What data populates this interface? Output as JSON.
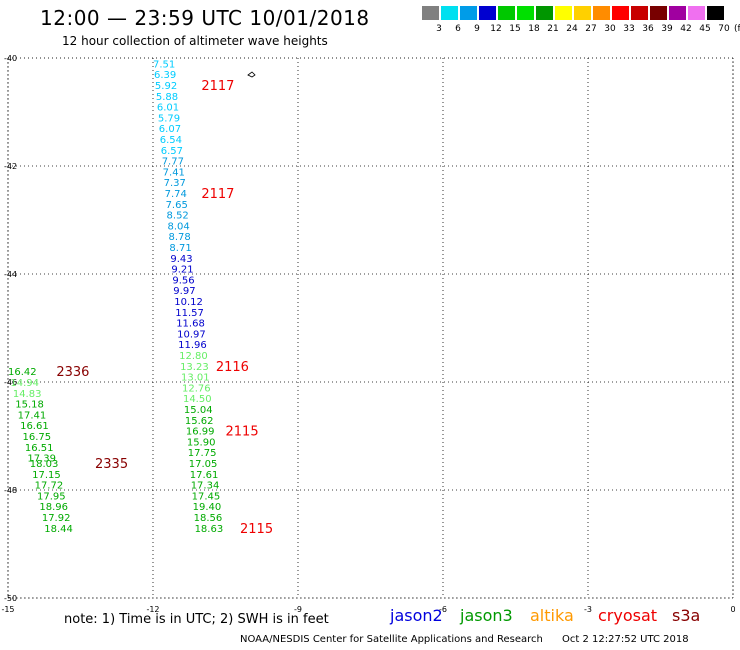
{
  "header": {
    "title": "12:00 — 23:59 UTC 10/01/2018",
    "subtitle": "12 hour collection of altimeter wave heights"
  },
  "scale": {
    "unit": "(ft)",
    "entries": [
      {
        "color": "#808080",
        "label": "3"
      },
      {
        "color": "#00e0f0",
        "label": "6"
      },
      {
        "color": "#009ce8",
        "label": "9"
      },
      {
        "color": "#0000d0",
        "label": "12"
      },
      {
        "color": "#00c800",
        "label": "15"
      },
      {
        "color": "#00e000",
        "label": "18"
      },
      {
        "color": "#009600",
        "label": "21"
      },
      {
        "color": "#ffff00",
        "label": "24"
      },
      {
        "color": "#ffd000",
        "label": "27"
      },
      {
        "color": "#ff8c00",
        "label": "30"
      },
      {
        "color": "#ff0000",
        "label": "33"
      },
      {
        "color": "#c80000",
        "label": "36"
      },
      {
        "color": "#780000",
        "label": "39"
      },
      {
        "color": "#a000a0",
        "label": "42"
      },
      {
        "color": "#f070f0",
        "label": "45"
      },
      {
        "color": "#000000",
        "label": "70"
      }
    ]
  },
  "axes": {
    "x_ticks": [
      "-15",
      "-12",
      "-9",
      "-6",
      "-3",
      "0"
    ],
    "y_ticks": [
      "-40",
      "-42",
      "-44",
      "-46",
      "-48",
      "-50"
    ]
  },
  "tracks": [
    {
      "satellite": "jason2",
      "points": [
        {
          "lon": -12.0,
          "lat": -40.1,
          "value": "7.51",
          "color": "#00ccff"
        },
        {
          "lon": -11.98,
          "lat": -40.3,
          "value": "6.39",
          "color": "#00ccff"
        },
        {
          "lon": -11.96,
          "lat": -40.5,
          "value": "5.92",
          "color": "#00ccff"
        },
        {
          "lon": -11.94,
          "lat": -40.7,
          "value": "5.88",
          "color": "#00ccff"
        },
        {
          "lon": -11.92,
          "lat": -40.9,
          "value": "6.01",
          "color": "#00ccff"
        },
        {
          "lon": -11.9,
          "lat": -41.1,
          "value": "5.79",
          "color": "#00ccff"
        },
        {
          "lon": -11.88,
          "lat": -41.3,
          "value": "6.07",
          "color": "#00ccff"
        },
        {
          "lon": -11.86,
          "lat": -41.5,
          "value": "6.54",
          "color": "#00ccff"
        },
        {
          "lon": -11.84,
          "lat": -41.7,
          "value": "6.57",
          "color": "#00ccff"
        },
        {
          "lon": -11.82,
          "lat": -41.9,
          "value": "7.77",
          "color": "#0099dd"
        },
        {
          "lon": -11.8,
          "lat": -42.1,
          "value": "7.41",
          "color": "#0099dd"
        },
        {
          "lon": -11.78,
          "lat": -42.3,
          "value": "7.37",
          "color": "#0099dd"
        },
        {
          "lon": -11.76,
          "lat": -42.5,
          "value": "7.74",
          "color": "#0099dd"
        },
        {
          "lon": -11.74,
          "lat": -42.7,
          "value": "7.65",
          "color": "#0099dd"
        },
        {
          "lon": -11.72,
          "lat": -42.9,
          "value": "8.52",
          "color": "#0099dd"
        },
        {
          "lon": -11.7,
          "lat": -43.1,
          "value": "8.04",
          "color": "#0099dd"
        },
        {
          "lon": -11.68,
          "lat": -43.3,
          "value": "8.78",
          "color": "#0099dd"
        },
        {
          "lon": -11.66,
          "lat": -43.5,
          "value": "8.71",
          "color": "#0099dd"
        },
        {
          "lon": -11.64,
          "lat": -43.7,
          "value": "9.43",
          "color": "#0000cc"
        },
        {
          "lon": -11.62,
          "lat": -43.9,
          "value": "9.21",
          "color": "#0000cc"
        },
        {
          "lon": -11.6,
          "lat": -44.1,
          "value": "9.56",
          "color": "#0000cc"
        },
        {
          "lon": -11.58,
          "lat": -44.3,
          "value": "9.97",
          "color": "#0000cc"
        },
        {
          "lon": -11.56,
          "lat": -44.5,
          "value": "10.12",
          "color": "#0000cc"
        },
        {
          "lon": -11.54,
          "lat": -44.7,
          "value": "11.57",
          "color": "#0000cc"
        },
        {
          "lon": -11.52,
          "lat": -44.9,
          "value": "11.68",
          "color": "#0000cc"
        },
        {
          "lon": -11.5,
          "lat": -45.1,
          "value": "10.97",
          "color": "#0000cc"
        },
        {
          "lon": -11.48,
          "lat": -45.3,
          "value": "11.96",
          "color": "#0000cc"
        },
        {
          "lon": -11.46,
          "lat": -45.5,
          "value": "12.80",
          "color": "#66ee66"
        },
        {
          "lon": -11.44,
          "lat": -45.7,
          "value": "13.23",
          "color": "#66ee66"
        },
        {
          "lon": -11.42,
          "lat": -45.9,
          "value": "13.01",
          "color": "#66ee66"
        },
        {
          "lon": -11.4,
          "lat": -46.1,
          "value": "12.76",
          "color": "#66ee66"
        },
        {
          "lon": -11.38,
          "lat": -46.3,
          "value": "14.50",
          "color": "#66ee66"
        },
        {
          "lon": -11.36,
          "lat": -46.5,
          "value": "15.04",
          "color": "#00aa00"
        },
        {
          "lon": -11.34,
          "lat": -46.7,
          "value": "15.62",
          "color": "#00aa00"
        },
        {
          "lon": -11.32,
          "lat": -46.9,
          "value": "16.99",
          "color": "#00aa00"
        },
        {
          "lon": -11.3,
          "lat": -47.1,
          "value": "15.90",
          "color": "#00aa00"
        },
        {
          "lon": -11.28,
          "lat": -47.3,
          "value": "17.75",
          "color": "#00aa00"
        },
        {
          "lon": -11.26,
          "lat": -47.5,
          "value": "17.05",
          "color": "#00aa00"
        },
        {
          "lon": -11.24,
          "lat": -47.7,
          "value": "17.61",
          "color": "#00aa00"
        },
        {
          "lon": -11.22,
          "lat": -47.9,
          "value": "17.34",
          "color": "#00aa00"
        },
        {
          "lon": -11.2,
          "lat": -48.1,
          "value": "17.45",
          "color": "#00aa00"
        },
        {
          "lon": -11.18,
          "lat": -48.3,
          "value": "19.40",
          "color": "#00aa00"
        },
        {
          "lon": -11.16,
          "lat": -48.5,
          "value": "18.56",
          "color": "#00aa00"
        },
        {
          "lon": -11.14,
          "lat": -48.7,
          "value": "18.63",
          "color": "#00aa00"
        }
      ],
      "time_labels": [
        {
          "lon": -11.0,
          "lat": -40.5,
          "text": "2117",
          "color": "#ee0000"
        },
        {
          "lon": -11.0,
          "lat": -42.5,
          "text": "2117",
          "color": "#ee0000"
        },
        {
          "lon": -10.7,
          "lat": -45.7,
          "text": "2116",
          "color": "#ee0000"
        },
        {
          "lon": -10.5,
          "lat": -46.9,
          "text": "2115",
          "color": "#ee0000"
        },
        {
          "lon": -10.2,
          "lat": -48.7,
          "text": "2115",
          "color": "#ee0000"
        }
      ]
    },
    {
      "satellite": "s3a",
      "points": [
        {
          "lon": -15.0,
          "lat": -45.8,
          "value": "16.42",
          "color": "#00aa00"
        },
        {
          "lon": -14.95,
          "lat": -46.0,
          "value": "14.94",
          "color": "#66ee66"
        },
        {
          "lon": -14.9,
          "lat": -46.2,
          "value": "14.83",
          "color": "#66ee66"
        },
        {
          "lon": -14.85,
          "lat": -46.4,
          "value": "15.18",
          "color": "#00aa00"
        },
        {
          "lon": -14.8,
          "lat": -46.6,
          "value": "17.41",
          "color": "#00aa00"
        },
        {
          "lon": -14.75,
          "lat": -46.8,
          "value": "16.61",
          "color": "#00aa00"
        },
        {
          "lon": -14.7,
          "lat": -47.0,
          "value": "16.75",
          "color": "#00aa00"
        },
        {
          "lon": -14.65,
          "lat": -47.2,
          "value": "16.51",
          "color": "#00aa00"
        },
        {
          "lon": -14.6,
          "lat": -47.4,
          "value": "17.39",
          "color": "#00aa00"
        },
        {
          "lon": -14.55,
          "lat": -47.5,
          "value": "18.03",
          "color": "#00aa00"
        },
        {
          "lon": -14.5,
          "lat": -47.7,
          "value": "17.15",
          "color": "#00aa00"
        },
        {
          "lon": -14.45,
          "lat": -47.9,
          "value": "17.72",
          "color": "#00aa00"
        },
        {
          "lon": -14.4,
          "lat": -48.1,
          "value": "17.95",
          "color": "#00aa00"
        },
        {
          "lon": -14.35,
          "lat": -48.3,
          "value": "18.96",
          "color": "#00aa00"
        },
        {
          "lon": -14.3,
          "lat": -48.5,
          "value": "17.92",
          "color": "#00aa00"
        },
        {
          "lon": -14.25,
          "lat": -48.7,
          "value": "18.44",
          "color": "#00aa00"
        }
      ],
      "time_labels": [
        {
          "lon": -14.0,
          "lat": -45.8,
          "text": "2336",
          "color": "#880000"
        },
        {
          "lon": -13.2,
          "lat": -47.5,
          "text": "2335",
          "color": "#880000"
        }
      ]
    }
  ],
  "notes": {
    "text": "note:  1) Time is in UTC;  2) SWH is in feet",
    "satellites": [
      {
        "name": "jason2",
        "color": "#0000dd"
      },
      {
        "name": "jason3",
        "color": "#009900"
      },
      {
        "name": "altika",
        "color": "#ff9900"
      },
      {
        "name": "cryosat",
        "color": "#ee0000"
      },
      {
        "name": "s3a",
        "color": "#880000"
      }
    ]
  },
  "footer": {
    "credit": "NOAA/NESDIS Center for Satellite Applications and Research",
    "timestamp": "Oct  2 12:27:52 UTC 2018"
  }
}
